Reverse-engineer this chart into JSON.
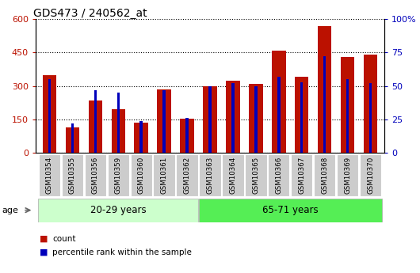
{
  "title": "GDS473 / 240562_at",
  "samples": [
    "GSM10354",
    "GSM10355",
    "GSM10356",
    "GSM10359",
    "GSM10360",
    "GSM10361",
    "GSM10362",
    "GSM10363",
    "GSM10364",
    "GSM10365",
    "GSM10366",
    "GSM10367",
    "GSM10368",
    "GSM10369",
    "GSM10370"
  ],
  "counts": [
    350,
    115,
    235,
    195,
    135,
    285,
    155,
    300,
    325,
    310,
    460,
    340,
    570,
    430,
    440
  ],
  "percentile_ranks": [
    55,
    22,
    47,
    45,
    24,
    47,
    26,
    50,
    52,
    50,
    57,
    53,
    72,
    55,
    52
  ],
  "group1_label": "20-29 years",
  "group2_label": "65-71 years",
  "group1_count": 7,
  "group2_count": 8,
  "bar_color_count": "#bb1100",
  "bar_color_pct": "#0000bb",
  "ylim_left": [
    0,
    600
  ],
  "ylim_right": [
    0,
    100
  ],
  "yticks_left": [
    0,
    150,
    300,
    450,
    600
  ],
  "yticks_right": [
    0,
    25,
    50,
    75,
    100
  ],
  "group1_bg": "#ccffcc",
  "group2_bg": "#55ee55",
  "age_label": "age",
  "legend_count": "count",
  "legend_pct": "percentile rank within the sample",
  "background_color": "#ffffff",
  "plot_bg": "#ffffff",
  "tick_bg": "#cccccc",
  "bar_width": 0.6,
  "pct_bar_width": 0.12
}
